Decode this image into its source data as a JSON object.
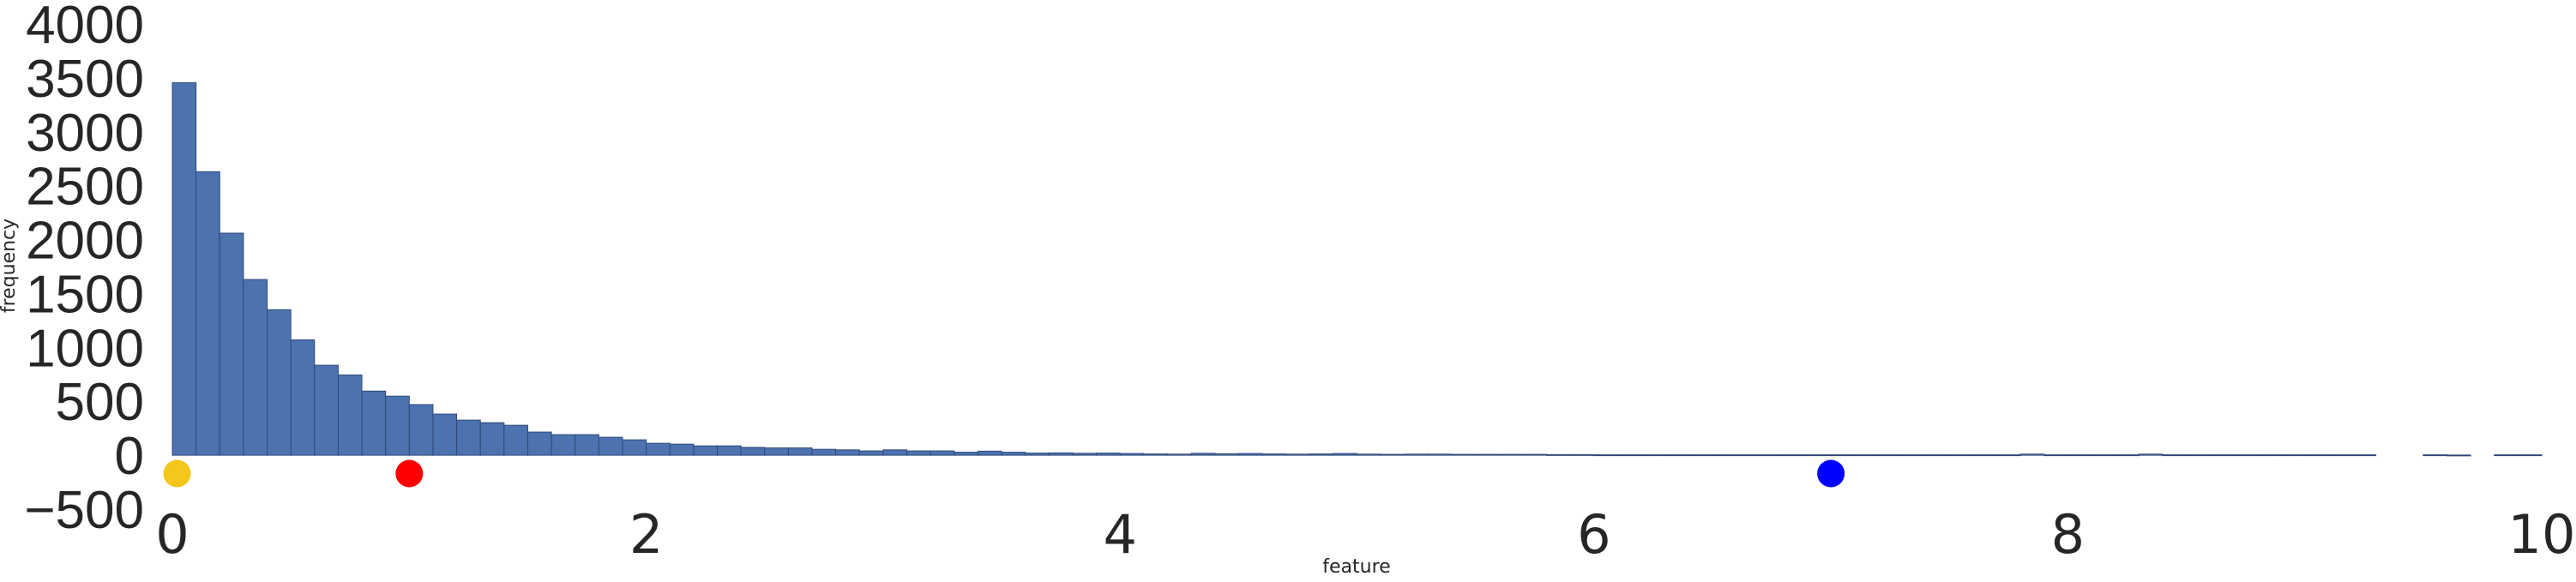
{
  "chart_data": {
    "type": "bar",
    "subtype": "histogram",
    "title": "",
    "xlabel": "feature",
    "ylabel": "frequency",
    "xlim": [
      0,
      10
    ],
    "ylim": [
      -500,
      4000
    ],
    "xticks": [
      "0",
      "2",
      "4",
      "6",
      "8",
      "10"
    ],
    "yticks": [
      "−500",
      "0",
      "500",
      "1000",
      "1500",
      "2000",
      "2500",
      "3000",
      "3500",
      "4000"
    ],
    "grid": false,
    "bin_width": 0.1,
    "bar_color": "#4c72b0",
    "values": [
      3455,
      2630,
      2060,
      1630,
      1350,
      1070,
      835,
      745,
      595,
      548,
      470,
      382,
      326,
      302,
      278,
      215,
      191,
      191,
      167,
      143,
      111,
      103,
      87,
      87,
      73,
      68,
      68,
      55,
      50,
      40,
      50,
      40,
      40,
      28,
      38,
      28,
      20,
      22,
      18,
      20,
      16,
      12,
      10,
      18,
      14,
      16,
      12,
      10,
      12,
      16,
      10,
      8,
      10,
      10,
      8,
      8,
      8,
      8,
      6,
      6,
      4,
      4,
      4,
      4,
      4,
      4,
      4,
      4,
      4,
      4,
      4,
      4,
      4,
      4,
      4,
      4,
      4,
      4,
      10,
      4,
      4,
      4,
      4,
      10,
      4,
      4,
      4,
      4,
      4,
      4,
      4,
      4,
      4,
      0,
      0,
      4,
      2,
      0,
      4,
      4
    ],
    "markers": [
      {
        "x": 0.02,
        "y": -170,
        "color": "#f5c71a"
      },
      {
        "x": 1.0,
        "y": -170,
        "color": "#ff0000"
      },
      {
        "x": 7.0,
        "y": -170,
        "color": "#0000ff"
      }
    ]
  }
}
